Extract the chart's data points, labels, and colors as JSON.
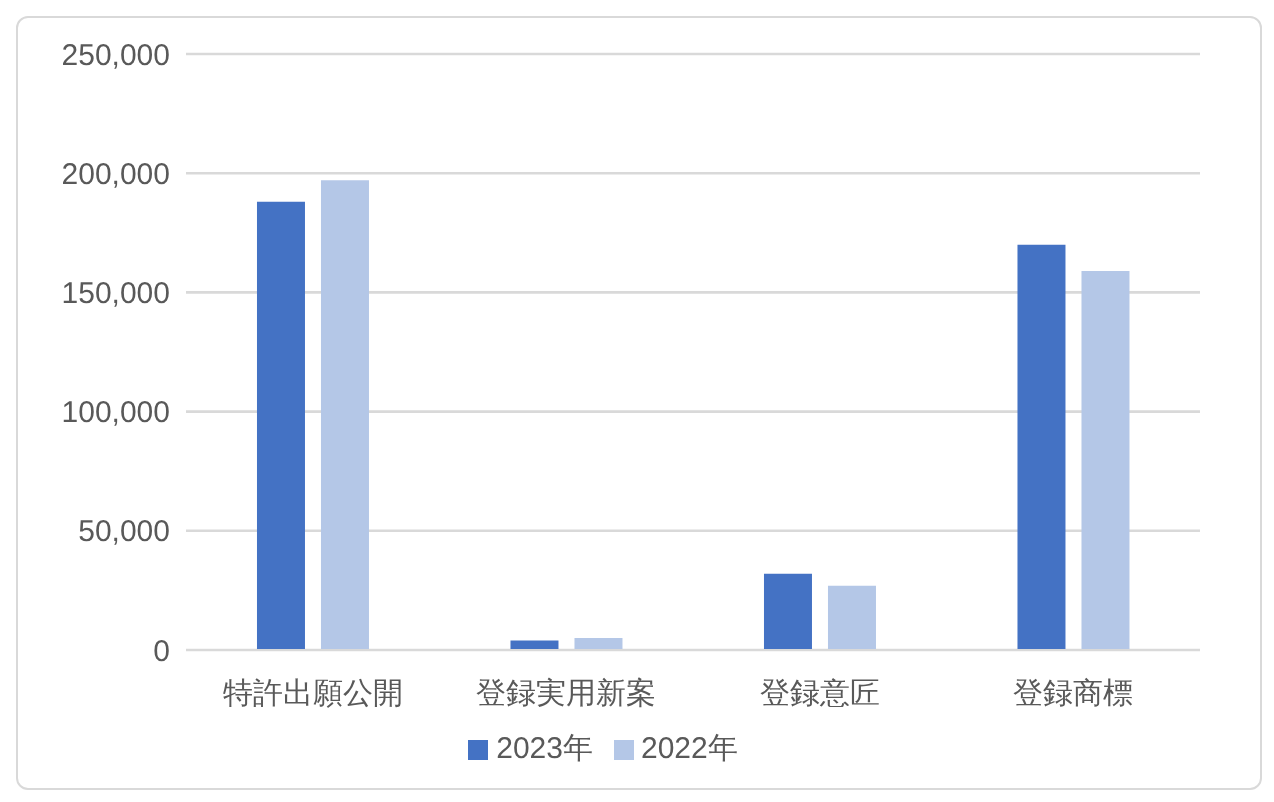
{
  "chart_data": {
    "type": "bar",
    "categories": [
      "特許出願公開",
      "登録実用新案",
      "登録意匠",
      "登録商標"
    ],
    "series": [
      {
        "name": "2023年",
        "color": "#4472c4",
        "values": [
          188000,
          4000,
          32000,
          170000
        ]
      },
      {
        "name": "2022年",
        "color": "#b4c7e7",
        "values": [
          197000,
          5000,
          27000,
          159000
        ]
      }
    ],
    "ylim": [
      0,
      250000
    ],
    "yticks": [
      {
        "value": 0,
        "label": "0"
      },
      {
        "value": 50000,
        "label": "50,000"
      },
      {
        "value": 100000,
        "label": "100,000"
      },
      {
        "value": 150000,
        "label": "150,000"
      },
      {
        "value": 200000,
        "label": "200,000"
      },
      {
        "value": 250000,
        "label": "250,000"
      }
    ],
    "grid": "y",
    "legend": "bottom"
  }
}
